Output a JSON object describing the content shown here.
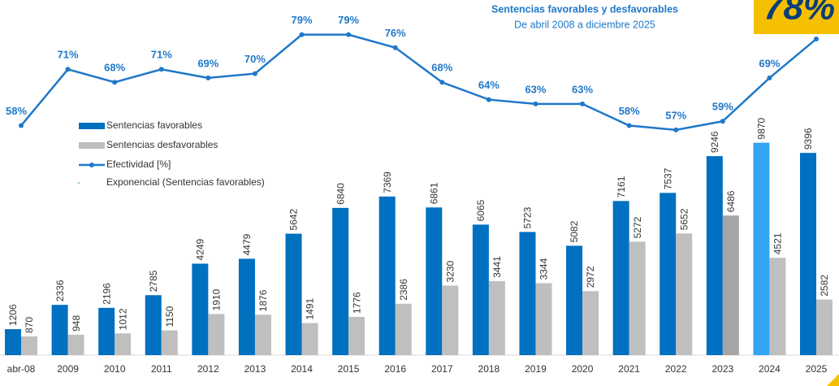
{
  "chart_data": {
    "type": "bar-line",
    "title": "Sentencias favorables y desfavorables",
    "subtitle": "De abril 2008 a diciembre 2025",
    "categories": [
      "abr-08",
      "2009",
      "2010",
      "2011",
      "2012",
      "2013",
      "2014",
      "2015",
      "2016",
      "2017",
      "2018",
      "2019",
      "2020",
      "2021",
      "2022",
      "2023",
      "2024",
      "2025"
    ],
    "series": [
      {
        "name": "Sentencias favorables",
        "type": "bar",
        "color": "#0070c0",
        "colors": [
          "#0070c0",
          "#0070c0",
          "#0070c0",
          "#0070c0",
          "#0070c0",
          "#0070c0",
          "#0070c0",
          "#0070c0",
          "#0070c0",
          "#0070c0",
          "#0070c0",
          "#0070c0",
          "#0070c0",
          "#0070c0",
          "#0070c0",
          "#0070c0",
          "#34a4f4",
          "#0070c0"
        ],
        "values": [
          1206,
          2336,
          2196,
          2785,
          4249,
          4479,
          5642,
          6840,
          7369,
          6861,
          6065,
          5723,
          5082,
          7161,
          7537,
          9246,
          9870,
          9396
        ]
      },
      {
        "name": "Sentencias desfavorables",
        "type": "bar",
        "color": "#bfbfbf",
        "colors": [
          "#bfbfbf",
          "#bfbfbf",
          "#bfbfbf",
          "#bfbfbf",
          "#bfbfbf",
          "#bfbfbf",
          "#bfbfbf",
          "#bfbfbf",
          "#bfbfbf",
          "#bfbfbf",
          "#bfbfbf",
          "#bfbfbf",
          "#bfbfbf",
          "#bfbfbf",
          "#bfbfbf",
          "#a5a5a5",
          "#bfbfbf",
          "#bfbfbf"
        ],
        "values": [
          870,
          948,
          1012,
          1150,
          1910,
          1876,
          1491,
          1776,
          2386,
          3230,
          3441,
          3344,
          2972,
          5272,
          5652,
          6486,
          4521,
          2582
        ]
      },
      {
        "name": "Efectividad [%]",
        "type": "line",
        "axis": "y2",
        "color": "#1f78c8",
        "values": [
          58,
          71,
          68,
          71,
          69,
          70,
          79,
          79,
          76,
          68,
          64,
          63,
          63,
          58,
          57,
          59,
          69,
          78
        ],
        "value_labels": [
          "58%",
          "71%",
          "68%",
          "71%",
          "69%",
          "70%",
          "79%",
          "79%",
          "76%",
          "68%",
          "64%",
          "63%",
          "63%",
          "58%",
          "57%",
          "59%",
          "69%",
          "78%"
        ]
      }
    ],
    "trendline": {
      "name": "Exponencial (Sentencias favorables)"
    },
    "ylim": [
      0,
      16500
    ],
    "y2lim": [
      5,
      87
    ]
  }
}
